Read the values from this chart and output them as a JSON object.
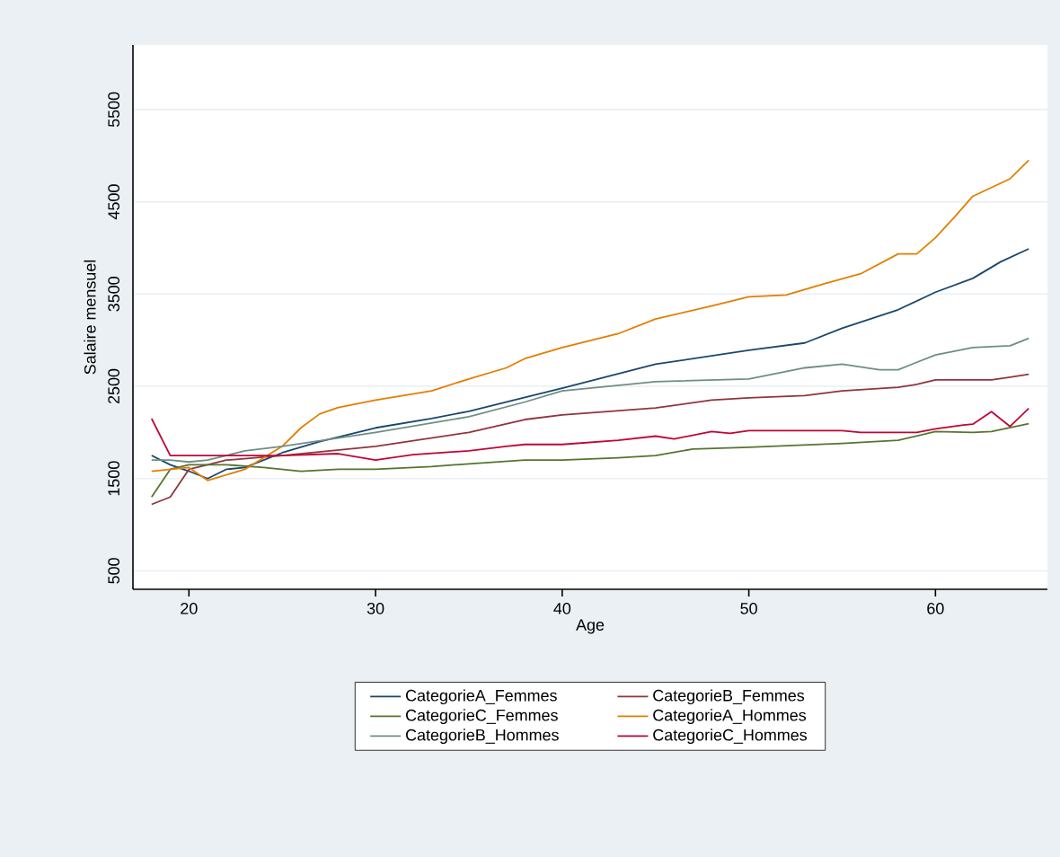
{
  "chart_data": {
    "type": "line",
    "xlabel": "Age",
    "ylabel": "Salaire mensuel",
    "xlim": [
      17,
      66
    ],
    "ylim": [
      300,
      6200
    ],
    "xticks": [
      20,
      30,
      40,
      50,
      60
    ],
    "yticks": [
      500,
      1500,
      2500,
      3500,
      4500,
      5500
    ],
    "grid": "y",
    "legend": "bottom",
    "marker": "none",
    "line_style": "solid",
    "series": [
      {
        "name": "CategorieA_Femmes",
        "color": "#1a476f",
        "x": [
          18,
          19,
          20,
          21,
          22,
          23,
          25,
          27,
          30,
          33,
          35,
          38,
          40,
          45,
          50,
          53,
          55,
          58,
          60,
          62,
          63.5,
          65
        ],
        "values": [
          1750,
          1650,
          1580,
          1500,
          1600,
          1620,
          1780,
          1900,
          2050,
          2150,
          2230,
          2380,
          2480,
          2740,
          2890,
          2970,
          3130,
          3330,
          3520,
          3670,
          3850,
          3990
        ]
      },
      {
        "name": "CategorieB_Femmes",
        "color": "#90353b",
        "x": [
          18,
          19,
          20,
          21,
          22,
          25,
          30,
          35,
          38,
          40,
          45,
          48,
          50,
          53,
          55,
          58,
          59,
          60,
          63,
          64,
          65
        ],
        "values": [
          1220,
          1300,
          1600,
          1650,
          1700,
          1750,
          1850,
          2000,
          2140,
          2190,
          2265,
          2350,
          2375,
          2400,
          2450,
          2490,
          2520,
          2570,
          2570,
          2600,
          2630
        ]
      },
      {
        "name": "CategorieC_Femmes",
        "color": "#55752f",
        "x": [
          18,
          19,
          20,
          22,
          24,
          26,
          28,
          30,
          33,
          35,
          38,
          40,
          43,
          45,
          47,
          50,
          55,
          58,
          60,
          62,
          63,
          65
        ],
        "values": [
          1300,
          1600,
          1650,
          1650,
          1620,
          1580,
          1600,
          1600,
          1630,
          1660,
          1700,
          1700,
          1725,
          1750,
          1820,
          1840,
          1880,
          1915,
          2010,
          2000,
          2010,
          2095
        ]
      },
      {
        "name": "CategorieA_Hommes",
        "color": "#e37e00",
        "x": [
          18,
          20,
          21,
          23,
          25,
          26,
          27,
          28,
          30,
          33,
          35,
          37,
          38,
          40,
          43,
          45,
          48,
          50,
          52,
          54,
          56,
          58,
          59,
          60,
          61,
          62,
          64,
          65
        ],
        "values": [
          1580,
          1620,
          1480,
          1600,
          1850,
          2050,
          2200,
          2270,
          2350,
          2450,
          2580,
          2700,
          2800,
          2920,
          3070,
          3230,
          3370,
          3470,
          3490,
          3610,
          3720,
          3935,
          3935,
          4110,
          4330,
          4560,
          4750,
          4950
        ]
      },
      {
        "name": "CategorieB_Hommes",
        "color": "#6e8e84",
        "x": [
          18,
          19,
          20,
          21,
          22,
          23,
          25,
          30,
          35,
          38,
          40,
          45,
          50,
          53,
          55,
          57,
          58,
          60,
          62,
          64,
          65
        ],
        "values": [
          1700,
          1700,
          1680,
          1700,
          1750,
          1800,
          1850,
          2000,
          2170,
          2330,
          2450,
          2550,
          2580,
          2700,
          2740,
          2680,
          2680,
          2840,
          2920,
          2940,
          3020
        ]
      },
      {
        "name": "CategorieC_Hommes",
        "color": "#c10534",
        "x": [
          18,
          19,
          20,
          22,
          25,
          28,
          30,
          32,
          35,
          37,
          38,
          40,
          43,
          45,
          46,
          48,
          49,
          50,
          55,
          56,
          59,
          60,
          61.5,
          62,
          63,
          64,
          65
        ],
        "values": [
          2150,
          1750,
          1750,
          1750,
          1750,
          1770,
          1700,
          1760,
          1800,
          1850,
          1870,
          1870,
          1915,
          1960,
          1930,
          2010,
          1990,
          2020,
          2020,
          2000,
          2000,
          2040,
          2080,
          2090,
          2225,
          2065,
          2260
        ]
      }
    ]
  }
}
